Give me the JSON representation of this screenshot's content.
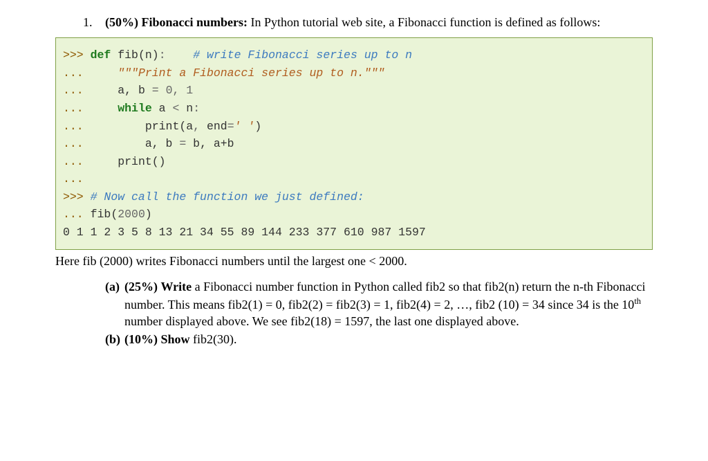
{
  "question": {
    "number": "1.",
    "weight": "(50%)",
    "title": "Fibonacci numbers:",
    "intro": "In Python tutorial web site, a Fibonacci function is defined as follows:"
  },
  "code": {
    "background_color": "#eaf4d7",
    "border_color": "#7fa046",
    "font_family": "Courier New",
    "font_size_pt": 12,
    "prompt_color": "#8f5902",
    "keyword_color": "#1e7a1e",
    "comment_color": "#3c7abf",
    "string_color": "#b05c1e",
    "number_color": "#666666",
    "operator_color": "#666666",
    "text_color": "#333333",
    "tokens": {
      "prompt_primary": ">>>",
      "prompt_cont": "...",
      "kw_def": "def",
      "fn_name": "fib",
      "param": "n",
      "colon": ":",
      "comment1": "# write Fibonacci series up to n",
      "docstring": "\"\"\"Print a Fibonacci series up to n.\"\"\"",
      "assign1_lhs": "a, b",
      "eq": "=",
      "zero": "0",
      "comma": ",",
      "one": "1",
      "kw_while": "while",
      "cond_a": "a",
      "lt": "<",
      "cond_n": "n",
      "print_call": "print",
      "print_arg_a": "a",
      "end_kw": "end",
      "end_val": "' '",
      "assign2_lhs": "a, b",
      "assign2_rhs": "b, a+b",
      "print_empty": "print",
      "comment2": "# Now call the function we just defined:",
      "call_fn": "fib",
      "call_arg": "2000",
      "output": "0 1 1 2 3 5 8 13 21 34 55 89 144 233 377 610 987 1597"
    }
  },
  "after_code": "Here fib (2000) writes Fibonacci numbers until the largest one < 2000.",
  "sub_a": {
    "label": "(a)",
    "weight": "(25%)",
    "lead": "Write",
    "text_1": "a Fibonacci number function in Python called fib2 so that fib2(n) return the n-th Fibonacci number. This means fib2(1) = 0, fib2(2) = fib2(3) = 1, fib2(4) = 2, …, fib2 (10) = 34 since 34 is the 10",
    "sup": "th",
    "text_2": " number displayed above. We see fib2(18) = 1597, the last one displayed above."
  },
  "sub_b": {
    "label": "(b)",
    "weight": "(10%)",
    "lead": "Show",
    "text": "fib2(30)."
  },
  "typography": {
    "body_font": "Times New Roman",
    "body_size_pt": 14,
    "body_color": "#000000",
    "page_bg": "#ffffff"
  }
}
